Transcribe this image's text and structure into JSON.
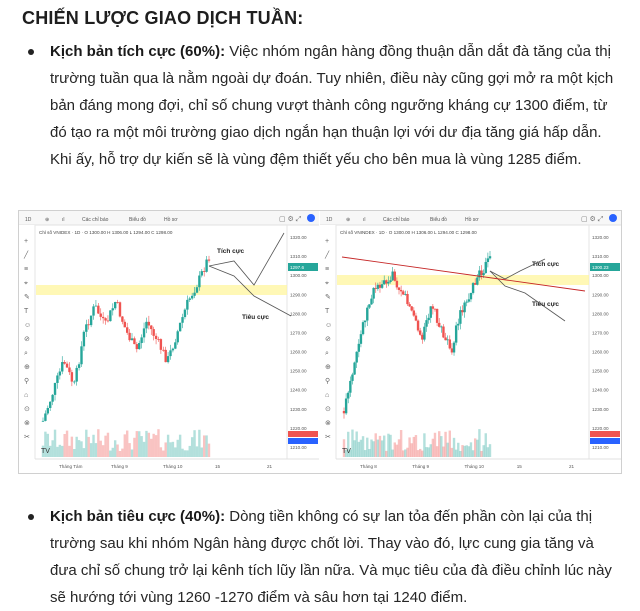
{
  "heading": "CHIẾN LƯỢC GIAO DỊCH TUẦN:",
  "bullets": [
    {
      "label": "Kịch bản tích cực (60%):",
      "text": " Việc nhóm ngân hàng đồng thuận dẫn dắt đà tăng của thị trường tuần qua là nằm ngoài dự đoán. Tuy nhiên, điều này cũng gợi mở ra một kịch bản đáng mong đợi, chỉ số chung vượt thành công ngưỡng kháng cự 1300 điểm, từ đó tạo ra một môi trường giao dịch ngắn hạn thuận lợi với dư địa tăng giá hấp dẫn. Khi ấy, hỗ trợ dự kiến sẽ là vùng đệm thiết yếu cho bên mua là vùng 1285 điểm."
    },
    {
      "label": "Kịch bản tiêu cực (40%):",
      "text": " Dòng tiền không có sự lan tỏa đến phần còn lại của thị trường sau khi nhóm Ngân hàng được chốt lời. Thay vào đó, lực cung gia tăng và đưa chỉ số chung trở lại kênh tích lũy lần nữa. Và mục tiêu của đà điều chỉnh lúc này sẽ hướng tới vùng 1260 -1270 điểm và sâu hơn tại 1240 điểm."
    }
  ],
  "charts": [
    {
      "symbol": "Chỉ số VNIDEX",
      "positive_label": "Tích cực",
      "negative_label": "Tiêu cực",
      "price_tag": "1297.6",
      "x_labels": [
        "Tháng Tám",
        "Tháng 9",
        "Tháng 10",
        "15",
        "21"
      ],
      "y_labels": [
        "1320.00",
        "1310.00",
        "1300.00",
        "1290.00",
        "1280.00",
        "1270.00",
        "1260.00",
        "1250.00",
        "1240.00",
        "1230.00",
        "1220.00",
        "1210.00"
      ],
      "accent_up": "#26a69a",
      "accent_down": "#ef5350"
    },
    {
      "symbol": "Chỉ số VNINDEX",
      "positive_label": "Tích cực",
      "negative_label": "Tiêu cực",
      "price_tag": "1300.23",
      "x_labels": [
        "Tháng 8",
        "Tháng 9",
        "Tháng 10",
        "15",
        "21"
      ],
      "y_labels": [
        "1320.00",
        "1310.00",
        "1300.00",
        "1290.00",
        "1280.00",
        "1270.00",
        "1260.00",
        "1250.00",
        "1240.00",
        "1230.00",
        "1220.00",
        "1210.00"
      ],
      "accent_up": "#26a69a",
      "accent_down": "#ef5350"
    }
  ]
}
